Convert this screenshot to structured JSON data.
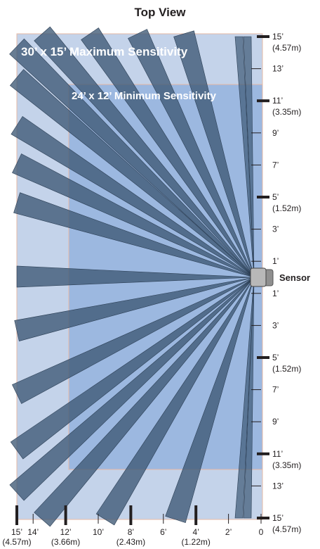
{
  "title": "Top View",
  "zones": {
    "max_label": "30’ x 15’ Maximum Sensitivity",
    "min_label": "24’ x 12’ Minimum Sensitivity"
  },
  "sensor_label": "Sensor",
  "colors": {
    "max_zone": "#c4d3ea",
    "min_zone": "#8fafdc",
    "beam": "#3d5875",
    "sensor": "#b8b8b8",
    "tick": "#231f20"
  },
  "right_scale": [
    {
      "ft": 15,
      "label": "15’",
      "metric": "(4.57m)",
      "major": true
    },
    {
      "ft": 13,
      "label": "13’",
      "metric": "",
      "major": false
    },
    {
      "ft": 11,
      "label": "11’",
      "metric": "(3.35m)",
      "major": true
    },
    {
      "ft": 9,
      "label": "9’",
      "metric": "",
      "major": false
    },
    {
      "ft": 7,
      "label": "7’",
      "metric": "",
      "major": false
    },
    {
      "ft": 5,
      "label": "5’",
      "metric": "(1.52m)",
      "major": true
    },
    {
      "ft": 3,
      "label": "3’",
      "metric": "",
      "major": false
    },
    {
      "ft": 1,
      "label": "1’",
      "metric": "",
      "major": false
    },
    {
      "ft": -1,
      "label": "1’",
      "metric": "",
      "major": false
    },
    {
      "ft": -3,
      "label": "3’",
      "metric": "",
      "major": false
    },
    {
      "ft": -5,
      "label": "5’",
      "metric": "(1.52m)",
      "major": true
    },
    {
      "ft": -7,
      "label": "7’",
      "metric": "",
      "major": false
    },
    {
      "ft": -9,
      "label": "9’",
      "metric": "",
      "major": false
    },
    {
      "ft": -11,
      "label": "11’",
      "metric": "(3.35m)",
      "major": true
    },
    {
      "ft": -13,
      "label": "13’",
      "metric": "",
      "major": false
    },
    {
      "ft": -15,
      "label": "15’",
      "metric": "(4.57m)",
      "major": true
    }
  ],
  "bottom_scale": [
    {
      "ft": 15,
      "label": "15’",
      "metric": "(4.57m)",
      "major": true
    },
    {
      "ft": 14,
      "label": "14’",
      "metric": "",
      "major": false
    },
    {
      "ft": 12,
      "label": "12’",
      "metric": "(3.66m)",
      "major": true
    },
    {
      "ft": 10,
      "label": "10’",
      "metric": "",
      "major": false
    },
    {
      "ft": 8,
      "label": "8’",
      "metric": "(2.43m)",
      "major": true
    },
    {
      "ft": 6,
      "label": "6’",
      "metric": "",
      "major": false
    },
    {
      "ft": 4,
      "label": "4’",
      "metric": "(1.22m)",
      "major": true
    },
    {
      "ft": 2,
      "label": "2’",
      "metric": "",
      "major": false
    },
    {
      "ft": 0,
      "label": "0",
      "metric": "",
      "major": false
    }
  ]
}
